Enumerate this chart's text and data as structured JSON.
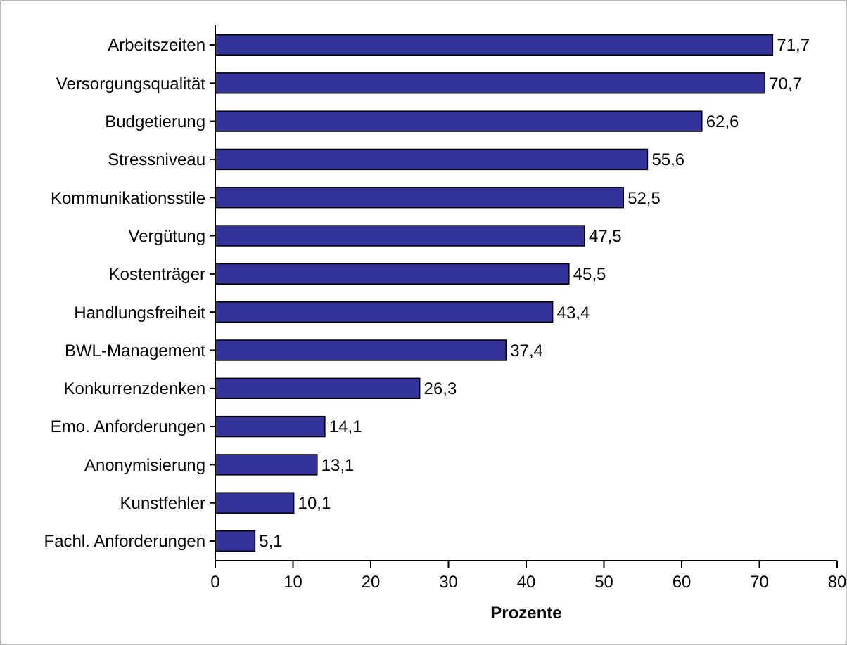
{
  "chart_data": {
    "type": "bar",
    "orientation": "horizontal",
    "xlabel": "Prozente",
    "categories": [
      "Arbeitszeiten",
      "Versorgungsqualität",
      "Budgetierung",
      "Stressniveau",
      "Kommunikationsstile",
      "Vergütung",
      "Kostenträger",
      "Handlungsfreiheit",
      "BWL-Management",
      "Konkurrenzdenken",
      "Emo. Anforderungen",
      "Anonymisierung",
      "Kunstfehler",
      "Fachl. Anforderungen"
    ],
    "values": [
      71.7,
      70.7,
      62.6,
      55.6,
      52.5,
      47.5,
      45.5,
      43.4,
      37.4,
      26.3,
      14.1,
      13.1,
      10.1,
      5.1
    ],
    "value_labels": [
      "71,7",
      "70,7",
      "62,6",
      "55,6",
      "52,5",
      "47,5",
      "45,5",
      "43,4",
      "37,4",
      "26,3",
      "14,1",
      "13,1",
      "10,1",
      "5,1"
    ],
    "color": "#333399",
    "xlim": [
      0,
      80
    ],
    "xticks": [
      0,
      10,
      20,
      30,
      40,
      50,
      60,
      70,
      80
    ],
    "grid": false
  }
}
